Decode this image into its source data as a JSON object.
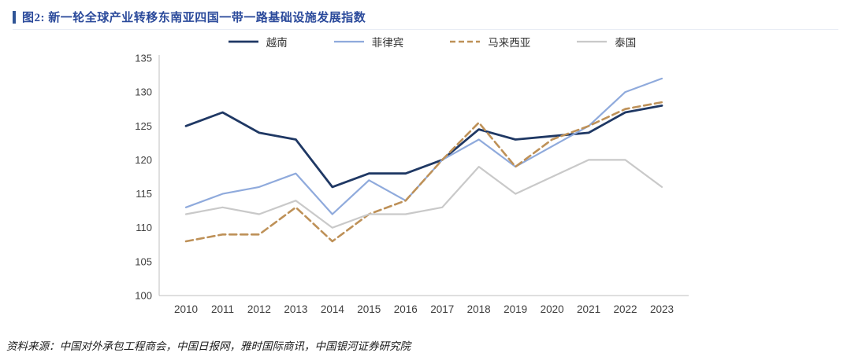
{
  "header": {
    "title": "图2: 新一轮全球产业转移东南亚四国一带一路基础设施发展指数",
    "accent_color": "#2F5496"
  },
  "chart_data": {
    "type": "line",
    "x": [
      "2010",
      "2011",
      "2012",
      "2013",
      "2014",
      "2015",
      "2016",
      "2017",
      "2018",
      "2019",
      "2020",
      "2021",
      "2022",
      "2023"
    ],
    "ylim": [
      100,
      135
    ],
    "ytick_step": 5,
    "grid": false,
    "legend_position": "top",
    "series": [
      {
        "key": "vietnam",
        "name": "越南",
        "color": "#1F3864",
        "width": 2.8,
        "dash": "",
        "values": [
          125,
          127,
          124,
          123,
          116,
          118,
          118,
          120,
          124.5,
          123,
          123.5,
          124,
          127,
          128
        ]
      },
      {
        "key": "philippines",
        "name": "菲律宾",
        "color": "#8FAADC",
        "width": 2.2,
        "dash": "",
        "values": [
          113,
          115,
          116,
          118,
          112,
          117,
          114,
          120,
          123,
          119,
          122,
          125,
          130,
          132
        ]
      },
      {
        "key": "malaysia",
        "name": "马来西亚",
        "color": "#BE9158",
        "width": 2.6,
        "dash": "9 5",
        "values": [
          108,
          109,
          109,
          113,
          108,
          112,
          114,
          120,
          125.5,
          119,
          123,
          125,
          127.5,
          128.5
        ]
      },
      {
        "key": "thailand",
        "name": "泰国",
        "color": "#C9C9C9",
        "width": 2.2,
        "dash": "",
        "values": [
          112,
          113,
          112,
          114,
          110,
          112,
          112,
          113,
          119,
          115,
          117.5,
          120,
          120,
          116
        ]
      }
    ]
  },
  "footer": {
    "source": "资料来源：中国对外承包工程商会，中国日报网，雅时国际商讯，中国银河证券研究院"
  }
}
